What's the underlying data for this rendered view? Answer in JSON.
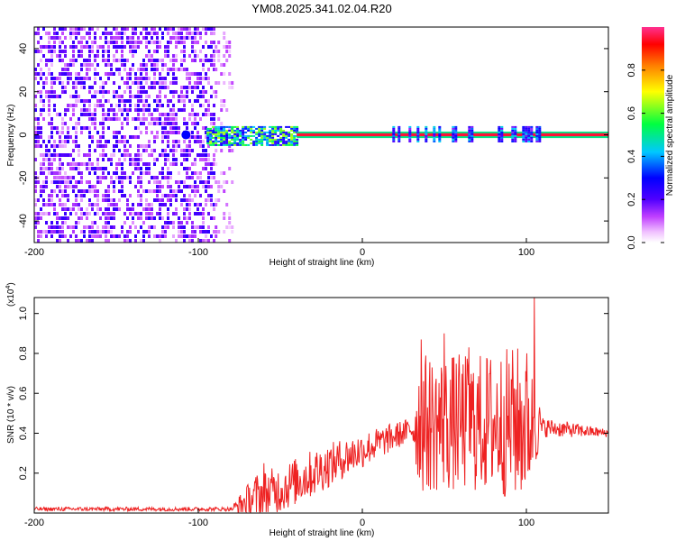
{
  "title": "YM08.2025.341.02.04.R20",
  "chart_data": [
    {
      "type": "heatmap",
      "title": "YM08.2025.341.02.04.R20",
      "xlabel": "Height of straight line (km)",
      "ylabel": "Frequency (Hz)",
      "xlim": [
        -200,
        150
      ],
      "ylim": [
        -50,
        50
      ],
      "x_ticks": [
        -200,
        -100,
        0,
        100
      ],
      "y_ticks": [
        -40,
        -20,
        0,
        20,
        40
      ],
      "colorbar": {
        "label": "Normalized spectral amplitude",
        "range": [
          0,
          1
        ],
        "ticks": [
          0.0,
          0.2,
          0.4,
          0.6,
          0.8
        ],
        "tick_labels": [
          "0.0",
          "0.2",
          "0.4",
          "0.6",
          "0.8"
        ],
        "colors": [
          "#ffffff",
          "#e060ff",
          "#6a00ff",
          "#0000ff",
          "#00d0ff",
          "#00ff40",
          "#ffff00",
          "#ff8000",
          "#ff0000"
        ]
      },
      "regions": [
        {
          "x_range": [
            -200,
            -90
          ],
          "freq_range": [
            -50,
            50
          ],
          "level": 0.1,
          "pattern": "scattered noise"
        },
        {
          "x_range": [
            -90,
            -80
          ],
          "freq_range": [
            -50,
            50
          ],
          "level": 0.05,
          "pattern": "sparse noise"
        },
        {
          "x_range": [
            -110,
            -105
          ],
          "freq_range": [
            -3,
            3
          ],
          "level": 0.3,
          "pattern": "blob"
        },
        {
          "x_range": [
            -95,
            -40
          ],
          "freq_range": [
            -5,
            4
          ],
          "level": 0.55,
          "pattern": "signal band"
        },
        {
          "x_range": [
            -40,
            150
          ],
          "freq_range": [
            -1,
            1
          ],
          "level": 0.95,
          "pattern": "line"
        },
        {
          "x_range": [
            15,
            110
          ],
          "freq_range": [
            -3,
            4
          ],
          "level": 0.3,
          "pattern": "intermittent band"
        }
      ]
    },
    {
      "type": "line",
      "xlabel": "Height of straight line (km)",
      "ylabel": "SNR (10 * v/v)",
      "y_multiplier": "(x10",
      "y_multiplier_exp": "4",
      "xlim": [
        -200,
        150
      ],
      "ylim": [
        0,
        1.08
      ],
      "x_ticks": [
        -200,
        -100,
        0,
        100
      ],
      "y_ticks": [
        0.2,
        0.4,
        0.6,
        0.8,
        1.0
      ],
      "y_tick_labels": [
        "0.2",
        "0.4",
        "0.6",
        "0.8",
        "1.0"
      ],
      "series": [
        {
          "name": "SNR",
          "color": "#ee2222",
          "envelope": [
            {
              "x": -200,
              "base": 0.02,
              "amp": 0.01
            },
            {
              "x": -80,
              "base": 0.02,
              "amp": 0.01
            },
            {
              "x": -75,
              "base": 0.04,
              "amp": 0.05
            },
            {
              "x": -65,
              "base": 0.08,
              "amp": 0.12
            },
            {
              "x": -50,
              "base": 0.12,
              "amp": 0.12
            },
            {
              "x": -30,
              "base": 0.2,
              "amp": 0.12
            },
            {
              "x": -10,
              "base": 0.28,
              "amp": 0.1
            },
            {
              "x": 10,
              "base": 0.35,
              "amp": 0.08
            },
            {
              "x": 30,
              "base": 0.42,
              "amp": 0.06
            },
            {
              "x": 35,
              "base": 0.45,
              "amp": 0.35
            },
            {
              "x": 70,
              "base": 0.45,
              "amp": 0.35
            },
            {
              "x": 100,
              "base": 0.45,
              "amp": 0.4
            },
            {
              "x": 110,
              "base": 0.43,
              "amp": 0.05
            },
            {
              "x": 150,
              "base": 0.4,
              "amp": 0.02
            }
          ],
          "peaks": [
            {
              "x": -60,
              "y": 0.25
            },
            {
              "x": 36,
              "y": 0.87
            },
            {
              "x": 50,
              "y": 0.9
            },
            {
              "x": 65,
              "y": 0.83
            },
            {
              "x": 92,
              "y": 0.66
            },
            {
              "x": 105,
              "y": 1.08
            }
          ]
        }
      ]
    }
  ]
}
